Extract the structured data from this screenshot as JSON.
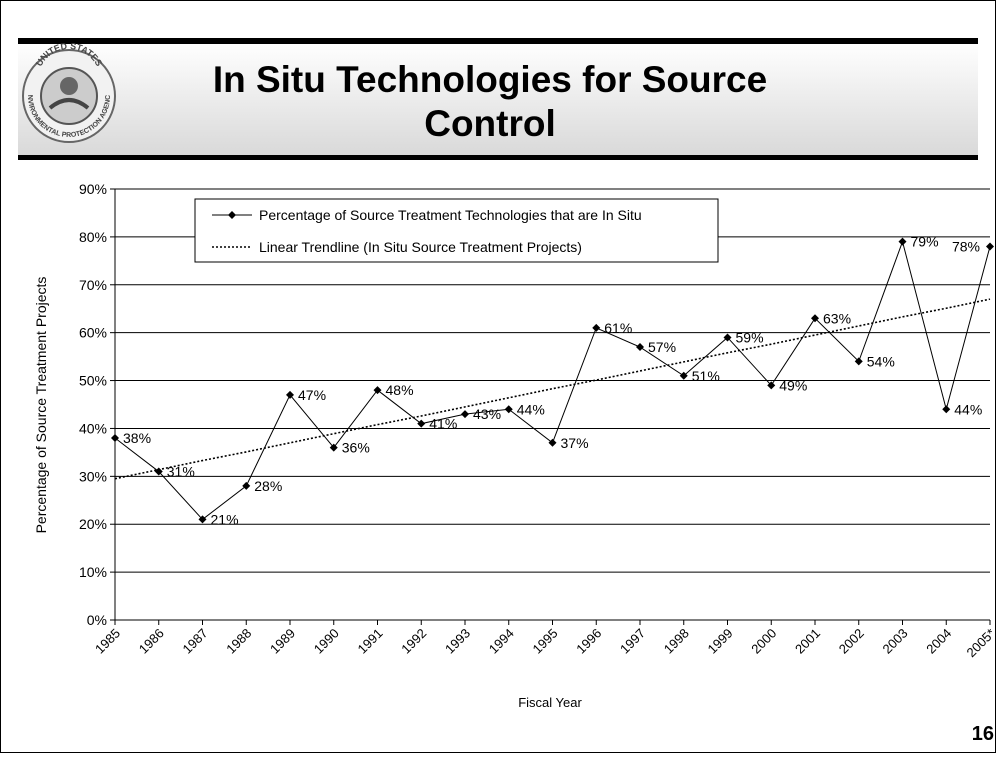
{
  "slide_title": "In Situ Technologies for Source Control",
  "page_number": "16",
  "logo_text": [
    "UNITED STATES",
    "ENVIRONMENTAL PROTECTION AGENCY"
  ],
  "chart_data": {
    "type": "line",
    "categories": [
      "1985",
      "1986",
      "1987",
      "1988",
      "1989",
      "1990",
      "1991",
      "1992",
      "1993",
      "1994",
      "1995",
      "1996",
      "1997",
      "1998",
      "1999",
      "2000",
      "2001",
      "2002",
      "2003",
      "2004",
      "2005*"
    ],
    "series": [
      {
        "name": "Percentage of Source Treatment Technologies that are In Situ",
        "color": "#000000",
        "style": "solid-diamond",
        "values": [
          38,
          31,
          21,
          28,
          47,
          36,
          48,
          41,
          43,
          44,
          37,
          61,
          57,
          51,
          59,
          49,
          63,
          54,
          79,
          44,
          78
        ],
        "value_labels": [
          "38%",
          "31%",
          "21%",
          "28%",
          "47%",
          "36%",
          "48%",
          "41%",
          "43%",
          "44%",
          "37%",
          "61%",
          "57%",
          "51%",
          "59%",
          "49%",
          "63%",
          "54%",
          "79%",
          "44%",
          "78%"
        ]
      },
      {
        "name": "Linear Trendline (In Situ Source Treatment Projects)",
        "color": "#000000",
        "style": "dotted",
        "values": [
          29.5,
          31.4,
          33.3,
          35.1,
          37.0,
          38.9,
          40.8,
          42.6,
          44.5,
          46.4,
          48.3,
          50.1,
          52.0,
          53.9,
          55.8,
          57.6,
          59.5,
          61.4,
          63.3,
          65.1,
          67.0
        ]
      }
    ],
    "x_label": "Fiscal Year",
    "y_label": "Percentage of Source Treatment Projects",
    "ylim": [
      0,
      90
    ],
    "yticks": [
      {
        "value": 0,
        "label": "0%"
      },
      {
        "value": 10,
        "label": "10%"
      },
      {
        "value": 20,
        "label": "20%"
      },
      {
        "value": 30,
        "label": "30%"
      },
      {
        "value": 40,
        "label": "40%"
      },
      {
        "value": 50,
        "label": "50%"
      },
      {
        "value": 60,
        "label": "60%"
      },
      {
        "value": 70,
        "label": "70%"
      },
      {
        "value": 80,
        "label": "80%"
      },
      {
        "value": 90,
        "label": "90%"
      }
    ],
    "grid": true,
    "legend": "top-left"
  }
}
